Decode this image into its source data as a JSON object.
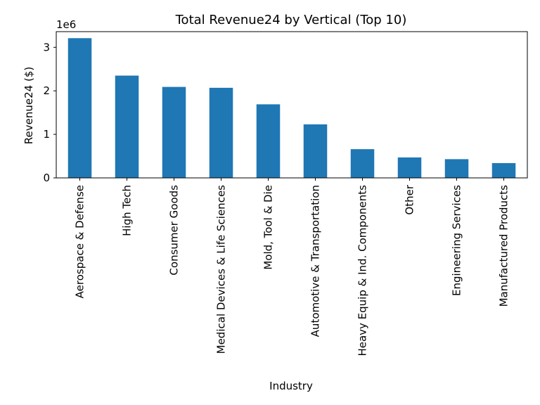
{
  "chart_data": {
    "type": "bar",
    "title": "Total Revenue24 by Vertical (Top 10)",
    "xlabel": "Industry",
    "ylabel": "Revenue24 ($)",
    "y_offset_label": "1e6",
    "ylim": [
      0,
      3360000
    ],
    "yticks": [
      0,
      1000000,
      2000000,
      3000000
    ],
    "ytick_labels": [
      "0",
      "1",
      "2",
      "3"
    ],
    "grid": false,
    "bar_color": "#1f77b4",
    "categories": [
      "Aerospace & Defense",
      "High Tech",
      "Consumer Goods",
      "Medical Devices & Life Sciences",
      "Mold, Tool & Die",
      "Automotive & Transportation",
      "Heavy Equip & Ind. Components",
      "Other",
      "Engineering Services",
      "Manufactured Products"
    ],
    "values": [
      3210000,
      2350000,
      2090000,
      2070000,
      1690000,
      1230000,
      660000,
      470000,
      430000,
      340000
    ]
  }
}
